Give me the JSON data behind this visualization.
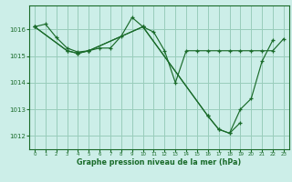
{
  "bg_color": "#cceee8",
  "grid_color": "#99ccbb",
  "line_color": "#1a6b2a",
  "xlabel": "Graphe pression niveau de la mer (hPa)",
  "ylim": [
    1011.5,
    1016.9
  ],
  "xlim": [
    -0.5,
    23.5
  ],
  "yticks": [
    1012,
    1013,
    1014,
    1015,
    1016
  ],
  "xticks": [
    0,
    1,
    2,
    3,
    4,
    5,
    6,
    7,
    8,
    9,
    10,
    11,
    12,
    13,
    14,
    15,
    16,
    17,
    18,
    19,
    20,
    21,
    22,
    23
  ],
  "series1_x": [
    0,
    1,
    2,
    3,
    4,
    5,
    6,
    7,
    8,
    9,
    10,
    11,
    12,
    13,
    14,
    15,
    16,
    17,
    18,
    19,
    20,
    21,
    22,
    23
  ],
  "series1_y": [
    1016.1,
    1016.2,
    1015.7,
    1015.3,
    1015.15,
    1015.2,
    1015.3,
    1015.3,
    1015.75,
    1016.45,
    1016.1,
    1015.9,
    1015.2,
    1014.0,
    1015.2,
    1015.2,
    1015.2,
    1015.2,
    1015.2,
    1015.2,
    1015.2,
    1015.2,
    1015.2,
    1015.65
  ],
  "series2_x": [
    0,
    3,
    4,
    5,
    10,
    16,
    17,
    18,
    19
  ],
  "series2_y": [
    1016.1,
    1015.2,
    1015.1,
    1015.2,
    1016.1,
    1012.75,
    1012.25,
    1012.1,
    1012.5
  ],
  "series3_x": [
    0,
    3,
    4,
    5,
    10,
    16,
    17,
    18,
    19,
    20,
    21,
    22
  ],
  "series3_y": [
    1016.1,
    1015.2,
    1015.1,
    1015.2,
    1016.1,
    1012.75,
    1012.25,
    1012.1,
    1013.0,
    1013.4,
    1014.8,
    1015.6
  ]
}
